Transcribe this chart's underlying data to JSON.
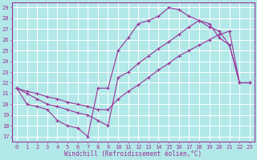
{
  "xlabel": "Windchill (Refroidissement éolien,°C)",
  "background_color": "#b2e8e8",
  "grid_color": "#ffffff",
  "line_color": "#993399",
  "xlim": [
    -0.5,
    23.5
  ],
  "ylim": [
    16.5,
    29.5
  ],
  "xtick_labels": [
    "0",
    "1",
    "2",
    "3",
    "4",
    "5",
    "6",
    "7",
    "8",
    "9",
    "10",
    "11",
    "12",
    "13",
    "14",
    "15",
    "16",
    "17",
    "18",
    "19",
    "20",
    "21",
    "22",
    "23"
  ],
  "ytick_labels": [
    "17",
    "18",
    "19",
    "20",
    "21",
    "22",
    "23",
    "24",
    "25",
    "26",
    "27",
    "28",
    "29"
  ],
  "series1_x": [
    0,
    1,
    2,
    3,
    4,
    5,
    6,
    7,
    8,
    9,
    10,
    11,
    12,
    13,
    14,
    15,
    16,
    17,
    18,
    19,
    20,
    21,
    22,
    23
  ],
  "series1_y": [
    21.5,
    20.0,
    19.8,
    19.5,
    18.5,
    18.0,
    17.8,
    17.0,
    21.5,
    21.5,
    25.0,
    26.2,
    27.5,
    27.8,
    28.2,
    29.0,
    28.8,
    28.2,
    27.8,
    27.5,
    26.2,
    25.5,
    22.0,
    22.0
  ],
  "series2_x": [
    0,
    1,
    2,
    3,
    4,
    5,
    6,
    7,
    8,
    9,
    10,
    11,
    12,
    13,
    14,
    15,
    16,
    17,
    18,
    19,
    20,
    21,
    22,
    23
  ],
  "series2_y": [
    21.5,
    21.2,
    21.0,
    20.7,
    20.5,
    20.2,
    20.0,
    19.8,
    19.5,
    19.5,
    20.5,
    21.2,
    21.8,
    22.5,
    23.2,
    23.8,
    24.5,
    25.0,
    25.5,
    26.0,
    26.5,
    26.8,
    22.0,
    22.0
  ],
  "series3_x": [
    0,
    1,
    2,
    3,
    4,
    5,
    6,
    7,
    8,
    9,
    10,
    11,
    12,
    13,
    14,
    15,
    16,
    17,
    18,
    19,
    20,
    21,
    22,
    23
  ],
  "series3_y": [
    21.5,
    21.0,
    20.5,
    20.0,
    19.8,
    19.5,
    19.2,
    19.0,
    18.5,
    18.0,
    22.5,
    23.0,
    23.8,
    24.5,
    25.2,
    25.8,
    26.5,
    27.2,
    27.8,
    27.2,
    26.8,
    25.5,
    22.0,
    22.0
  ]
}
